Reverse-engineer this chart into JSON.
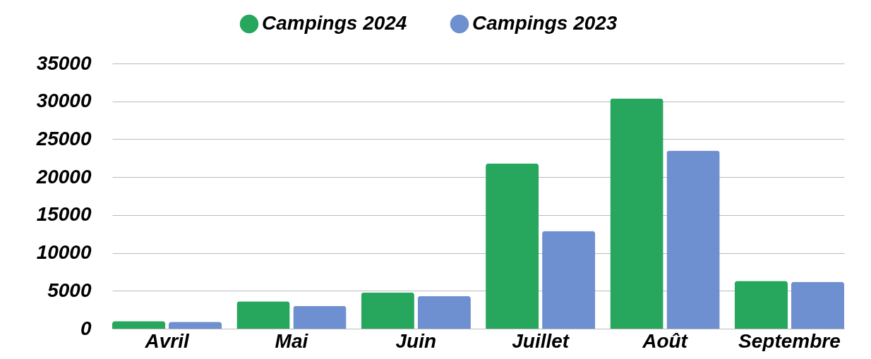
{
  "chart_data": {
    "type": "bar",
    "categories": [
      "Avril",
      "Mai",
      "Juin",
      "Juillet",
      "Août",
      "Septembre"
    ],
    "series": [
      {
        "name": "Campings 2024",
        "color": "#27a65d",
        "values": [
          1000,
          3600,
          4800,
          21800,
          30400,
          6300
        ]
      },
      {
        "name": "Campings 2023",
        "color": "#6e8fd0",
        "values": [
          900,
          3000,
          4300,
          12900,
          23500,
          6200
        ]
      }
    ],
    "ylim": [
      0,
      35000
    ],
    "yticks": [
      0,
      5000,
      10000,
      15000,
      20000,
      25000,
      30000,
      35000
    ],
    "grid": "y",
    "legend": "top"
  }
}
